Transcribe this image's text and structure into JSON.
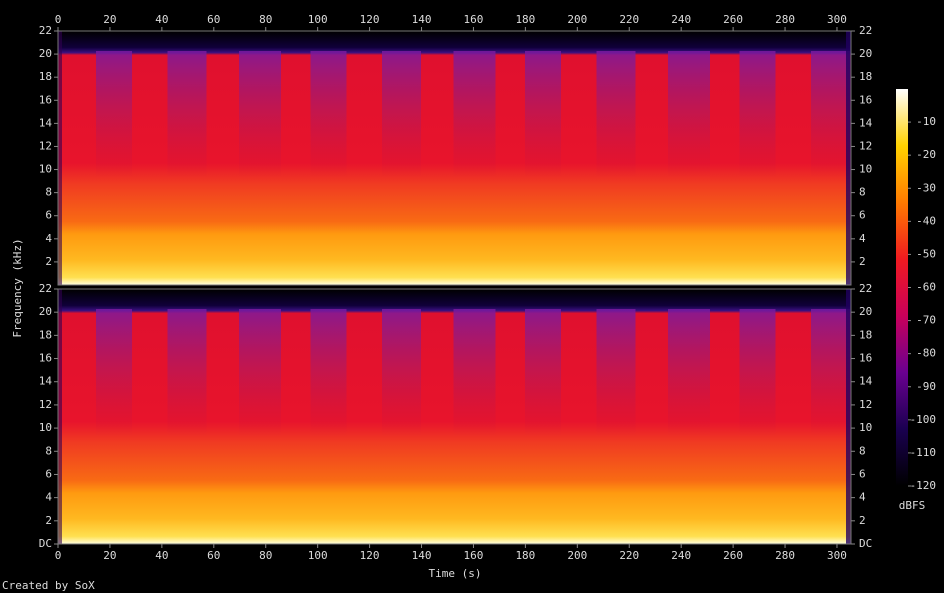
{
  "chart_data": {
    "type": "spectrogram",
    "x_label": "Time (s)",
    "y_label": "Frequency (kHz)",
    "credit": "Created by SoX",
    "xlim": [
      0,
      305.4
    ],
    "xticks": [
      0,
      20,
      40,
      60,
      80,
      100,
      120,
      140,
      160,
      180,
      200,
      220,
      240,
      260,
      280,
      300
    ],
    "panels": [
      {
        "ylim": [
          0,
          22
        ],
        "yticks": [
          2,
          4,
          6,
          8,
          10,
          12,
          14,
          16,
          18,
          20,
          22
        ]
      },
      {
        "ylim": [
          0,
          22
        ],
        "yticks": [
          {
            "value": 0,
            "label": "DC"
          },
          2,
          4,
          6,
          8,
          10,
          12,
          14,
          16,
          18,
          20,
          22
        ]
      }
    ],
    "colorbar": {
      "label": "dBFS",
      "clim": [
        -120,
        0
      ],
      "ticks": [
        -120,
        -110,
        -100,
        -90,
        -80,
        -70,
        -60,
        -50,
        -40,
        -30,
        -20,
        -10
      ],
      "colormap": [
        "#000000",
        "#1a0050",
        "#6a0090",
        "#c8005a",
        "#f01a20",
        "#ff7a00",
        "#ffd200",
        "#ffffff"
      ]
    }
  }
}
